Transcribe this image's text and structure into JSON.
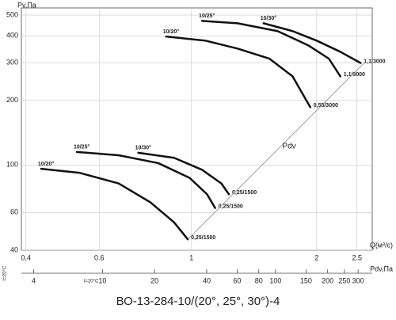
{
  "chart_data": {
    "type": "line",
    "title": "ВО-13-284-10/(20°, 25°, 30°)-4",
    "y_label": "Pv,Па",
    "x_label": "Q(м³/с)",
    "xscale": "log",
    "yscale": "log",
    "grid": true,
    "xlim": [
      0.39,
      2.72
    ],
    "ylim": [
      40,
      540
    ],
    "xticks": [
      {
        "value": 0.4,
        "label": "0,4"
      },
      0.6,
      1,
      2,
      2.5
    ],
    "yticks": [
      40,
      60,
      100,
      200,
      300,
      400,
      500
    ],
    "series": [
      {
        "name": "10/20°",
        "end_label": "0,55/3000",
        "color": "#111",
        "width": 2.5,
        "x": [
          0.869,
          1.08,
          1.29,
          1.54,
          1.75,
          1.93
        ],
        "values": [
          397,
          380,
          349,
          313,
          259,
          186
        ]
      },
      {
        "name": "10/25°",
        "end_label": "1,1/3000",
        "color": "#111",
        "width": 2.5,
        "x": [
          1.06,
          1.29,
          1.61,
          1.91,
          2.14,
          2.28
        ],
        "values": [
          470,
          458,
          421,
          361,
          313,
          259
        ]
      },
      {
        "name": "10/30°",
        "end_label": "1,1/3000",
        "color": "#111",
        "width": 2.5,
        "x": [
          1.49,
          1.75,
          2.0,
          2.28,
          2.55
        ],
        "values": [
          458,
          421,
          380,
          337,
          299
        ]
      },
      {
        "name": "10/20°",
        "end_label": "0,25/1500",
        "color": "#111",
        "width": 2.5,
        "x": [
          0.435,
          0.537,
          0.668,
          0.796,
          0.908,
          0.98
        ],
        "values": [
          96,
          92,
          82,
          67,
          54,
          45
        ]
      },
      {
        "name": "10/25°",
        "end_label": "0,25/1500",
        "color": "#111",
        "width": 2.5,
        "x": [
          0.53,
          0.668,
          0.832,
          0.99,
          1.09,
          1.14
        ],
        "values": [
          115,
          111,
          102,
          87,
          73,
          63
        ]
      },
      {
        "name": "10/30°",
        "end_label": "0,25/1500",
        "color": "#111",
        "width": 2.5,
        "x": [
          0.745,
          0.908,
          1.06,
          1.18,
          1.23
        ],
        "values": [
          114,
          108,
          95,
          82,
          73
        ]
      },
      {
        "name": "Pdv",
        "color": "#888",
        "width": 0.8,
        "x": [
          0.98,
          2.6
        ],
        "values": [
          45,
          299
        ]
      }
    ],
    "pdv_axis": {
      "label": "Pdv,Па",
      "note": "t=20°C",
      "side_note": "t=20°C",
      "lim": [
        3.4,
        362
      ],
      "ticks": [
        4,
        10,
        20,
        40,
        60,
        80,
        100,
        150,
        200,
        250,
        300
      ]
    }
  }
}
